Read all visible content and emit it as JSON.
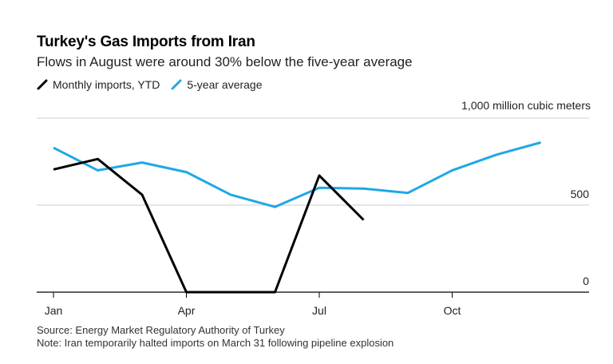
{
  "chart_data": {
    "type": "line",
    "title": "Turkey's Gas Imports from Iran",
    "subtitle": "Flows in August were around 30% below the five-year average",
    "unit_label": "1,000 million cubic meters",
    "ylim": [
      0,
      1000
    ],
    "y_ticks": [
      {
        "value": 0,
        "label": "0"
      },
      {
        "value": 500,
        "label": "500"
      },
      {
        "value": 1000,
        "label": ""
      }
    ],
    "x_domain": [
      1,
      12.6
    ],
    "x_ticks": [
      {
        "value": 1,
        "label": "Jan"
      },
      {
        "value": 4,
        "label": "Apr"
      },
      {
        "value": 7,
        "label": "Jul"
      },
      {
        "value": 10,
        "label": "Oct"
      }
    ],
    "series": [
      {
        "name": "5-year average",
        "color": "#1fa8e6",
        "points": [
          {
            "x": 1,
            "y": 830
          },
          {
            "x": 2,
            "y": 700
          },
          {
            "x": 3,
            "y": 745
          },
          {
            "x": 4,
            "y": 690
          },
          {
            "x": 5,
            "y": 560
          },
          {
            "x": 6,
            "y": 490
          },
          {
            "x": 7,
            "y": 600
          },
          {
            "x": 8,
            "y": 595
          },
          {
            "x": 9,
            "y": 570
          },
          {
            "x": 10,
            "y": 700
          },
          {
            "x": 11,
            "y": 790
          },
          {
            "x": 12,
            "y": 860
          }
        ]
      },
      {
        "name": "Monthly imports, YTD",
        "color": "#000000",
        "points": [
          {
            "x": 1,
            "y": 705
          },
          {
            "x": 2,
            "y": 765
          },
          {
            "x": 3,
            "y": 560
          },
          {
            "x": 4,
            "y": 0
          },
          {
            "x": 5,
            "y": 0
          },
          {
            "x": 6,
            "y": 0
          },
          {
            "x": 7,
            "y": 670
          },
          {
            "x": 8,
            "y": 415
          }
        ]
      }
    ],
    "legend": [
      {
        "label": "Monthly imports, YTD",
        "color": "#000000"
      },
      {
        "label": "5-year average",
        "color": "#1fa8e6"
      }
    ]
  },
  "footer": {
    "source": "Source: Energy Market Regulatory Authority of Turkey",
    "note": "Note: Iran temporarily halted imports on March 31 following pipeline explosion"
  }
}
